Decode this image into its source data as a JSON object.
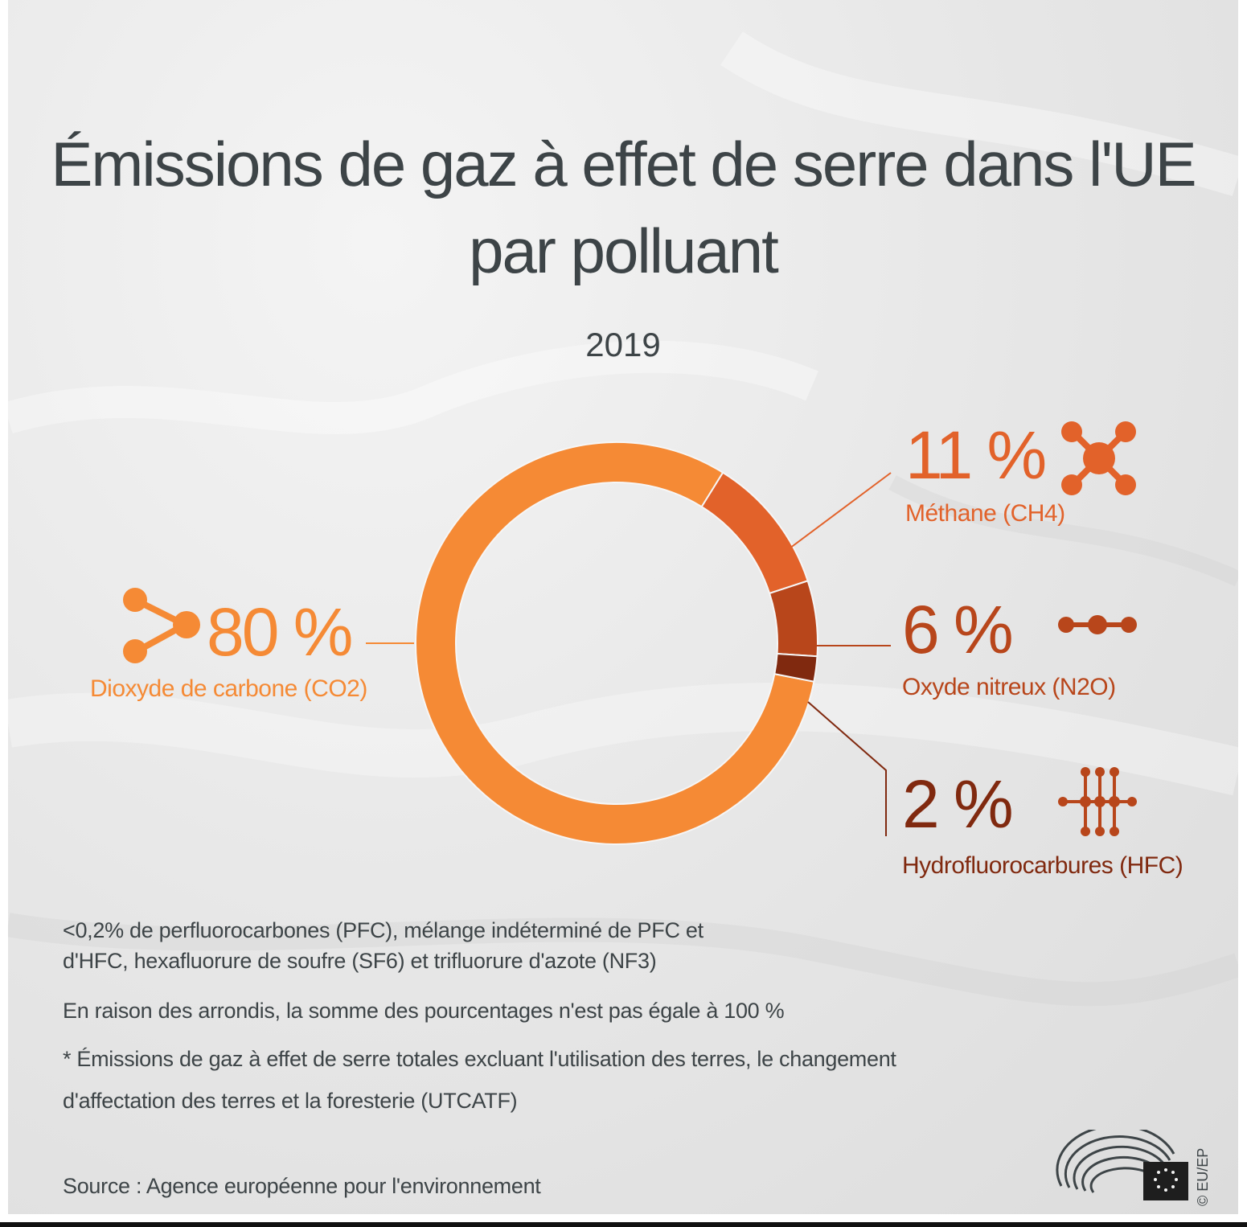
{
  "title": "Émissions de gaz à effet de serre dans l'UE par polluant",
  "subtitle": "2019",
  "chart_data": {
    "type": "pie",
    "title": "Émissions de gaz à effet de serre dans l'UE par polluant",
    "subtitle": "2019",
    "categories": [
      "Dioxyde de carbone (CO2)",
      "Méthane (CH4)",
      "Oxyde nitreux (N2O)",
      "Hydrofluorocarbures (HFC)"
    ],
    "values": [
      80,
      11,
      6,
      2
    ],
    "value_labels": [
      "80 %",
      "11 %",
      "6 %",
      "2 %"
    ],
    "colors": [
      "#f58a35",
      "#e2622a",
      "#b8461b",
      "#80290f"
    ]
  },
  "labels": {
    "co2": {
      "pct": "80 %",
      "name": "Dioxyde de carbone (CO2)",
      "icon": "co2-molecule-icon"
    },
    "ch4": {
      "pct": "11 %",
      "name": "Méthane (CH4)",
      "icon": "methane-molecule-icon"
    },
    "n2o": {
      "pct": "6 %",
      "name": "Oxyde nitreux (N2O)",
      "icon": "n2o-molecule-icon"
    },
    "hfc": {
      "pct": "2 %",
      "name": "Hydrofluorocarbures (HFC)",
      "icon": "hfc-molecule-icon"
    }
  },
  "notes": {
    "pfc_line1": "<0,2% de perfluorocarbones (PFC), mélange indéterminé de PFC et",
    "pfc_line2": "d'HFC, hexafluorure de soufre (SF6) et trifluorure d'azote (NF3)",
    "rounding": "En raison des arrondis, la somme des pourcentages n'est pas égale à 100 %",
    "footnote_line1": "* Émissions de gaz à effet de serre totales excluant l'utilisation des terres, le changement",
    "footnote_line2": "d'affectation des terres et la foresterie (UTCATF)",
    "source": "Source : Agence européenne pour l'environnement"
  },
  "copyright": "© EU/EP",
  "colors": {
    "text": "#3d4447",
    "accent": "#f58a35"
  }
}
